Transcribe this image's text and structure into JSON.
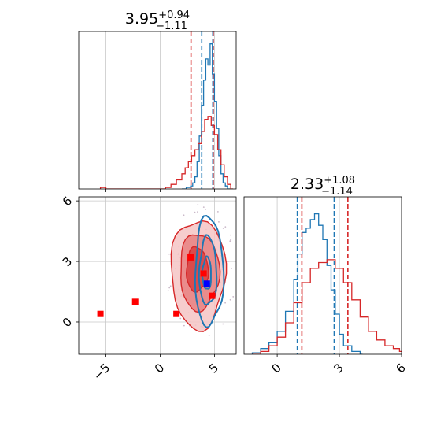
{
  "chart_data": [
    {
      "type": "histogram",
      "panel": "marginal-x",
      "title": {
        "value": "3.95",
        "upper": "+0.94",
        "lower": "−1.11"
      },
      "xlim": [
        -7.5,
        7.0
      ],
      "grid": true,
      "series": [
        {
          "color": "#1f77b4",
          "x": [
            2.0,
            2.4,
            2.8,
            3.0,
            3.2,
            3.4,
            3.6,
            3.8,
            4.0,
            4.2,
            4.4,
            4.6,
            4.8,
            5.0,
            5.2,
            5.4,
            5.6,
            5.8,
            6.0,
            6.2
          ],
          "values": [
            0.0,
            0.01,
            0.02,
            0.04,
            0.08,
            0.18,
            0.35,
            0.55,
            0.72,
            0.86,
            0.82,
            0.96,
            0.76,
            0.58,
            0.4,
            0.22,
            0.1,
            0.04,
            0.02,
            0.0
          ]
        },
        {
          "color": "#d62728",
          "x": [
            -5.5,
            -5.0,
            0.5,
            1.0,
            1.5,
            2.0,
            2.3,
            2.6,
            2.9,
            3.2,
            3.5,
            3.8,
            4.1,
            4.4,
            4.7,
            5.0,
            5.3,
            5.6,
            5.9,
            6.2,
            6.5
          ],
          "values": [
            0.01,
            0.0,
            0.01,
            0.03,
            0.06,
            0.1,
            0.14,
            0.18,
            0.22,
            0.26,
            0.3,
            0.38,
            0.46,
            0.48,
            0.42,
            0.36,
            0.26,
            0.16,
            0.08,
            0.03,
            0.0
          ]
        }
      ],
      "vlines": [
        {
          "x": 2.84,
          "color": "#d62728"
        },
        {
          "x": 4.89,
          "color": "#d62728"
        },
        {
          "x": 3.83,
          "color": "#1f77b4"
        },
        {
          "x": 4.85,
          "color": "#1f77b4"
        }
      ]
    },
    {
      "type": "contour-scatter",
      "panel": "joint",
      "xlim": [
        -7.5,
        7.0
      ],
      "ylim": [
        -1.6,
        6.2
      ],
      "xticks": [
        -5,
        0,
        5
      ],
      "xtick_labels": [
        "−5",
        "0",
        "5"
      ],
      "yticks": [
        0,
        3,
        6
      ],
      "ytick_labels": [
        "0",
        "3",
        "6"
      ],
      "grid": true,
      "red_markers": [
        {
          "x": -5.5,
          "y": 0.4
        },
        {
          "x": -2.3,
          "y": 1.0
        },
        {
          "x": 1.5,
          "y": 0.4
        },
        {
          "x": 2.8,
          "y": 3.2
        },
        {
          "x": 4.0,
          "y": 2.4
        },
        {
          "x": 4.8,
          "y": 1.3
        }
      ],
      "blue_markers": [
        {
          "x": 4.3,
          "y": 1.9
        }
      ],
      "red_contours": [
        {
          "cx": 3.5,
          "cy": 2.4,
          "rx": 2.5,
          "ry": 2.7
        },
        {
          "cx": 3.6,
          "cy": 2.5,
          "rx": 1.8,
          "ry": 1.9
        },
        {
          "cx": 3.4,
          "cy": 2.6,
          "rx": 1.0,
          "ry": 1.1
        }
      ],
      "blue_contours": [
        {
          "cx": 4.5,
          "cy": 2.5,
          "rx": 1.3,
          "ry": 2.7
        },
        {
          "cx": 4.4,
          "cy": 2.5,
          "rx": 0.8,
          "ry": 1.7
        },
        {
          "cx": 4.3,
          "cy": 2.4,
          "rx": 0.4,
          "ry": 0.8
        }
      ]
    },
    {
      "type": "histogram",
      "panel": "marginal-y",
      "title": {
        "value": "2.33",
        "upper": "+1.08",
        "lower": "−1.14"
      },
      "xlim": [
        -1.6,
        6.0
      ],
      "xticks": [
        0,
        3,
        6
      ],
      "xtick_labels": [
        "0",
        "3",
        "6"
      ],
      "grid": true,
      "series": [
        {
          "color": "#1f77b4",
          "x": [
            -1.2,
            -0.8,
            -0.4,
            0.0,
            0.4,
            0.8,
            1.0,
            1.2,
            1.4,
            1.6,
            1.8,
            2.0,
            2.2,
            2.4,
            2.6,
            2.8,
            3.0,
            3.2,
            3.6,
            4.0
          ],
          "values": [
            0.01,
            0.04,
            0.08,
            0.16,
            0.3,
            0.52,
            0.7,
            0.85,
            0.88,
            0.94,
            0.98,
            0.9,
            0.8,
            0.62,
            0.45,
            0.28,
            0.14,
            0.06,
            0.02,
            0.0
          ]
        },
        {
          "color": "#d62728",
          "x": [
            -1.2,
            -0.8,
            -0.4,
            0.0,
            0.4,
            0.8,
            1.2,
            1.6,
            2.0,
            2.4,
            2.8,
            3.2,
            3.6,
            4.0,
            4.4,
            4.8,
            5.2,
            5.6,
            5.9
          ],
          "values": [
            0.0,
            0.02,
            0.06,
            0.12,
            0.22,
            0.36,
            0.5,
            0.6,
            0.64,
            0.66,
            0.6,
            0.5,
            0.38,
            0.26,
            0.16,
            0.1,
            0.06,
            0.04,
            0.02
          ]
        }
      ],
      "vlines": [
        {
          "x": 1.19,
          "color": "#d62728"
        },
        {
          "x": 3.41,
          "color": "#d62728"
        },
        {
          "x": 0.97,
          "color": "#1f77b4"
        },
        {
          "x": 2.75,
          "color": "#1f77b4"
        }
      ]
    }
  ]
}
